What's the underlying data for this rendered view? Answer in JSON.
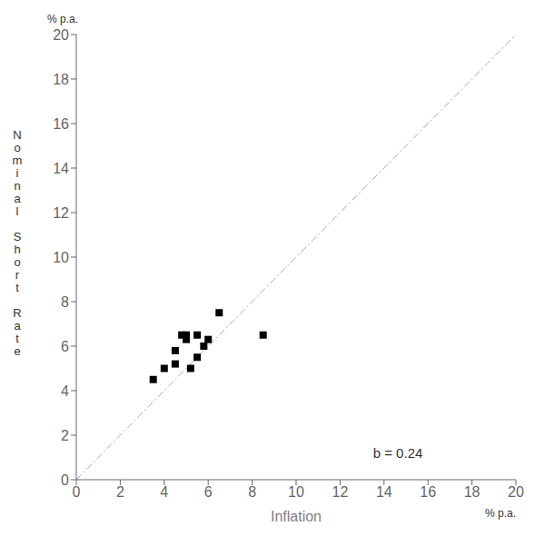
{
  "chart_data": {
    "type": "scatter",
    "xlabel": "Inflation",
    "ylabel": "Nominal Short Rate",
    "y_unit_label": "% p.a.",
    "x_unit_label": "% p.a.",
    "annotations": [
      {
        "text": "b = 0.24",
        "x": 13.5,
        "y": 1.0
      }
    ],
    "series": [
      {
        "type": "scatter",
        "color": "#000000",
        "marker": "square",
        "x": [
          3.5,
          4.0,
          4.5,
          4.5,
          4.8,
          5.0,
          5.0,
          5.2,
          5.5,
          5.5,
          5.8,
          6.0,
          6.5,
          8.5
        ],
        "values": [
          4.5,
          5.0,
          5.2,
          5.8,
          6.5,
          6.3,
          6.5,
          5.0,
          5.5,
          6.5,
          6.0,
          6.3,
          7.5,
          6.5
        ]
      },
      {
        "type": "line",
        "color": "#aaaaaa",
        "line_style": "dashdot",
        "x": [
          0,
          20
        ],
        "values": [
          0,
          20
        ]
      }
    ],
    "xlim": [
      0,
      20
    ],
    "ylim": [
      0,
      20
    ],
    "xticks": [
      0,
      2,
      4,
      6,
      8,
      10,
      12,
      14,
      16,
      18,
      20
    ],
    "yticks": [
      0,
      2,
      4,
      6,
      8,
      10,
      12,
      14,
      16,
      18,
      20
    ],
    "grid": false
  }
}
